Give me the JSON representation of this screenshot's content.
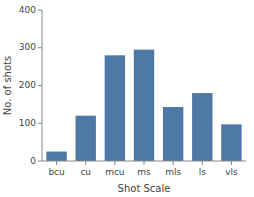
{
  "chart_data": {
    "type": "bar",
    "categories": [
      "bcu",
      "cu",
      "mcu",
      "ms",
      "mls",
      "ls",
      "vls"
    ],
    "values": [
      25,
      120,
      280,
      295,
      143,
      180,
      97
    ],
    "xlabel": "Shot Scale",
    "ylabel": "No. of shots",
    "ylim": [
      0,
      400
    ],
    "yticks": [
      0,
      100,
      200,
      300,
      400
    ]
  }
}
